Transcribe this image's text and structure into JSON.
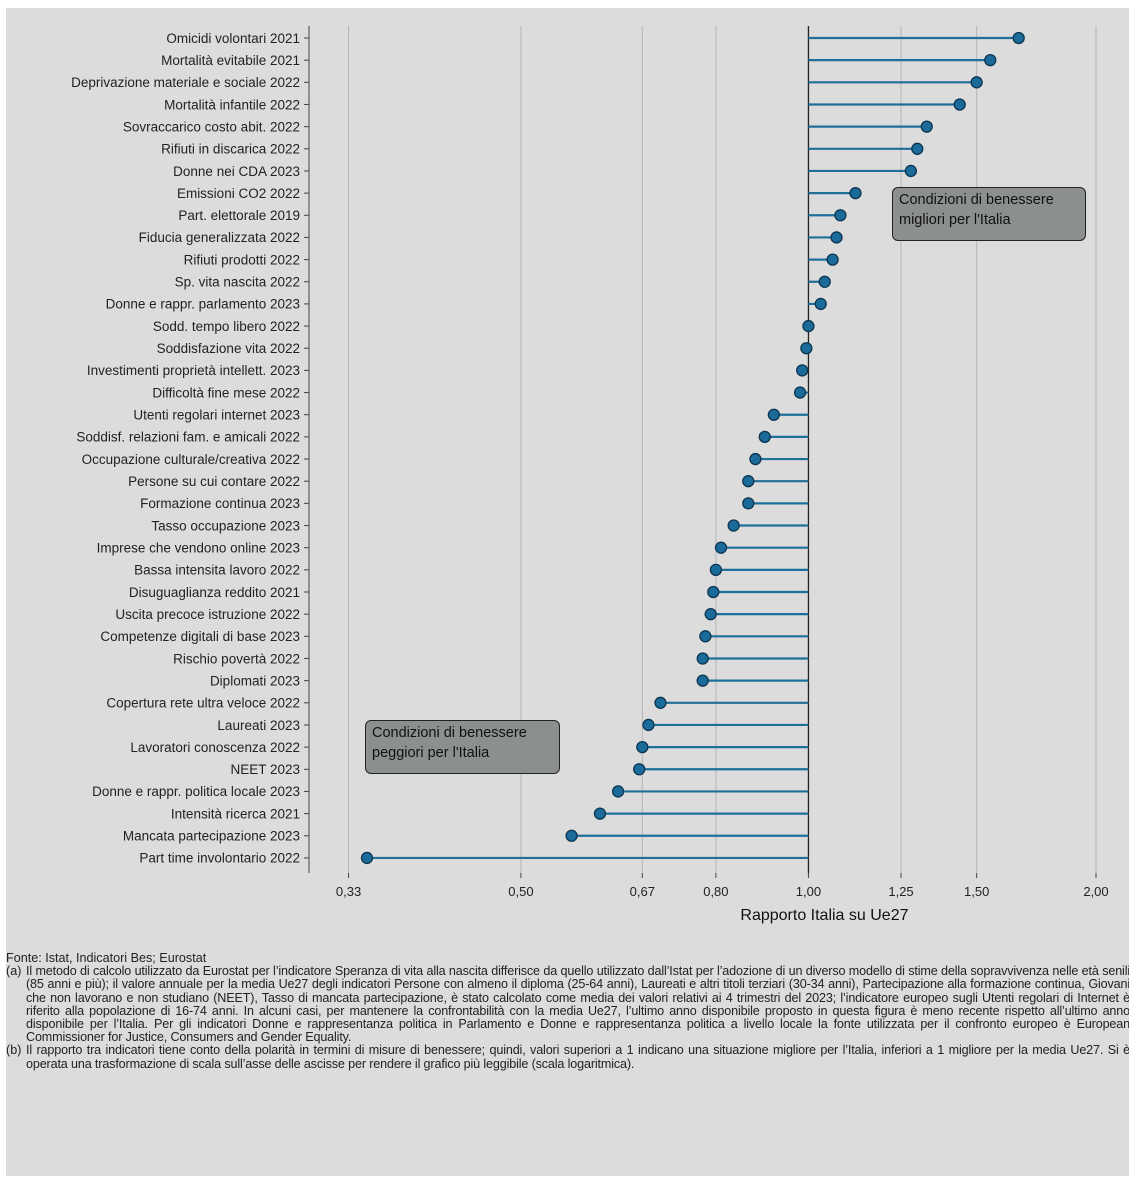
{
  "chart_data": {
    "type": "lollipop",
    "xscale": "log",
    "xlabel": "Rapporto Italia su Ue27",
    "xticks": [
      "0,33",
      "0,50",
      "0,67",
      "0,80",
      "1,00",
      "1,25",
      "1,50",
      "2,00"
    ],
    "xlim": [
      0.3,
      2.15
    ],
    "reference_value": 1.0,
    "grid": true,
    "colors": {
      "stem": "#1f6f9b",
      "marker": "#1b6b9a",
      "marker_edge": "#0d3550",
      "reference": "#222222",
      "grid": "#b5b5b5"
    },
    "categories": [
      "Omicidi volontari 2021",
      "Mortalità evitabile 2021",
      "Deprivazione materiale e sociale 2022",
      "Mortalità infantile 2022",
      "Sovraccarico costo abit. 2022",
      "Rifiuti in discarica 2022",
      "Donne nei CDA 2023",
      "Emissioni CO2 2022",
      "Part. elettorale 2019",
      "Fiducia generalizzata 2022",
      "Rifiuti prodotti 2022",
      "Sp. vita nascita 2022",
      "Donne e rappr. parlamento 2023",
      "Sodd. tempo libero 2022",
      "Soddisfazione vita 2022",
      "Investimenti proprietà intellett. 2023",
      "Difficoltà fine mese 2022",
      "Utenti regolari internet 2023",
      "Soddisf. relazioni fam. e amicali 2022",
      "Occupazione culturale/creativa 2022",
      "Persone su cui contare 2022",
      "Formazione continua 2023",
      "Tasso occupazione 2023",
      "Imprese che vendono online 2023",
      "Bassa intensita lavoro 2022",
      "Disuguaglianza reddito 2021",
      "Uscita precoce istruzione 2022",
      "Competenze digitali di base 2023",
      "Rischio povertà 2022",
      "Diplomati 2023",
      "Copertura rete ultra veloce 2022",
      "Laureati 2023",
      "Lavoratori conoscenza 2022",
      "NEET 2023",
      "Donne e rappr. politica locale 2023",
      "Intensità ricerca 2021",
      "Mancata partecipazione 2023",
      "Part time involontario 2022"
    ],
    "values": [
      1.66,
      1.55,
      1.5,
      1.44,
      1.33,
      1.3,
      1.28,
      1.12,
      1.08,
      1.07,
      1.06,
      1.04,
      1.03,
      1.0,
      0.995,
      0.985,
      0.98,
      0.92,
      0.9,
      0.88,
      0.865,
      0.865,
      0.835,
      0.81,
      0.8,
      0.795,
      0.79,
      0.78,
      0.775,
      0.775,
      0.7,
      0.68,
      0.67,
      0.665,
      0.632,
      0.605,
      0.565,
      0.345
    ],
    "annotations": [
      {
        "text": [
          "Condizioni di benessere",
          "migliori per l'Italia"
        ]
      },
      {
        "text": [
          "Condizioni di benessere",
          "peggiori per l'Italia"
        ]
      }
    ]
  },
  "source": "Fonte: Istat, Indicatori Bes; Eurostat",
  "notes": [
    {
      "marker": "(a)",
      "text": "Il metodo di calcolo utilizzato da Eurostat per l’indicatore Speranza di vita alla nascita differisce da quello utilizzato dall’Istat per l’adozione di un diverso modello di stime della sopravvivenza nelle età senili (85 anni e più); il valore annuale per la media Ue27 degli indicatori Persone con almeno il diploma (25-64 anni), Laureati e altri titoli terziari (30-34 anni), Partecipazione alla formazione continua, Giovani che non lavorano e non studiano (NEET), Tasso di mancata partecipazione, è stato calcolato come media dei valori relativi ai 4 trimestri del 2023; l’indicatore europeo sugli Utenti regolari di Internet è riferito alla popolazione di 16-74 anni. In alcuni casi, per mantenere la confrontabilità con la media Ue27, l’ultimo anno disponibile proposto in questa figura è meno recente rispetto all’ultimo anno disponibile per l’Italia. Per gli indicatori Donne e rappresentanza politica in Parlamento e Donne e rappresentanza politica a livello locale la fonte utilizzata per il confronto europeo è European Commissioner for Justice, Consumers and Gender Equality."
    },
    {
      "marker": "(b)",
      "text": "Il rapporto tra indicatori tiene conto della polarità in termini di misure di benessere; quindi, valori superiori a 1 indicano una situazione migliore per l’Italia, inferiori a 1 migliore per la media Ue27. Si è operata una trasformazione di scala sull’asse delle ascisse per rendere il grafico più leggibile (scala logaritmica)."
    }
  ]
}
